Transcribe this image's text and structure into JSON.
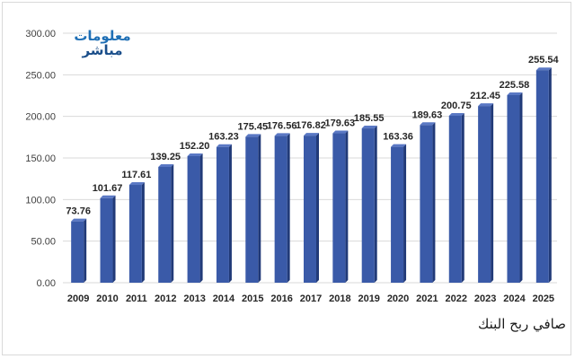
{
  "logo": {
    "line1": "معلومات",
    "line2": "مباشر"
  },
  "colors": {
    "bar": "#3a5aa8",
    "bar_dark": "#213a78",
    "bar_top": "#5a78c4",
    "grid": "#d9d9d9"
  },
  "chart_data": {
    "type": "bar",
    "categories": [
      "2009",
      "2010",
      "2011",
      "2012",
      "2013",
      "2014",
      "2015",
      "2016",
      "2017",
      "2018",
      "2019",
      "2020",
      "2021",
      "2022",
      "2023",
      "2024",
      "2025"
    ],
    "series": [
      {
        "name": "صافي ربح البنك",
        "values": [
          73.76,
          101.67,
          117.61,
          139.25,
          152.2,
          163.23,
          175.45,
          176.56,
          176.82,
          179.63,
          185.55,
          163.36,
          189.63,
          200.75,
          212.45,
          225.58,
          255.54
        ]
      }
    ],
    "data_labels": [
      "73.76",
      "101.67",
      "117.61",
      "139.25",
      "152.20",
      "163.23",
      "175.45",
      "176.56",
      "176.82",
      "179.63",
      "185.55",
      "163.36",
      "189.63",
      "200.75",
      "212.45",
      "225.58",
      "255.54"
    ],
    "yticks": [
      "0.00",
      "50.00",
      "100.00",
      "150.00",
      "200.00",
      "250.00",
      "300.00"
    ],
    "ylim": [
      0,
      300
    ],
    "grid": true,
    "legend_position": "bottom-right"
  }
}
